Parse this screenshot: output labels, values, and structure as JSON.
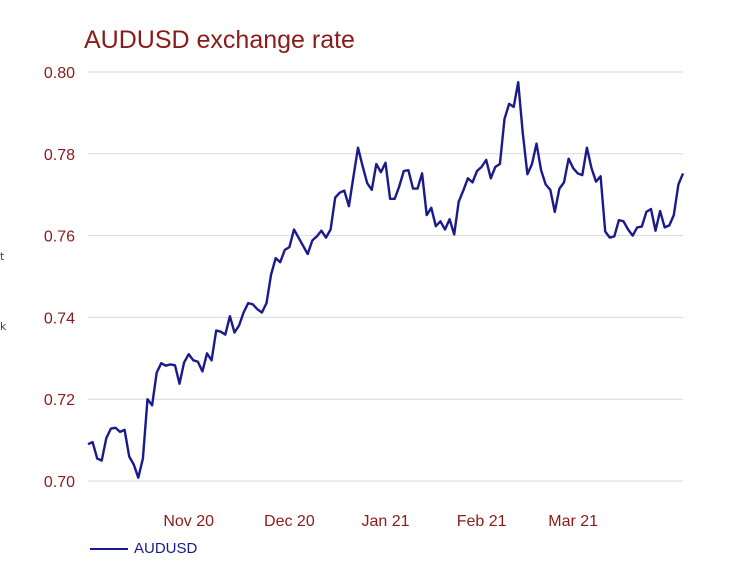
{
  "chart_data": {
    "type": "line",
    "title": "AUDUSD exchange rate",
    "xlabel": "",
    "ylabel": "",
    "ylim": [
      0.7,
      0.8
    ],
    "y_ticks": [
      "0.70",
      "0.72",
      "0.74",
      "0.76",
      "0.78",
      "0.80"
    ],
    "x_ticks": [
      {
        "label": "Nov 20",
        "index": 22
      },
      {
        "label": "Dec 20",
        "index": 44
      },
      {
        "label": "Jan 21",
        "index": 65
      },
      {
        "label": "Feb 21",
        "index": 86
      },
      {
        "label": "Mar 21",
        "index": 106
      }
    ],
    "grid": "horizontal",
    "legend": "bottom-left",
    "series": [
      {
        "name": "AUDUSD",
        "color": "#1a1a8c",
        "values": [
          0.709,
          0.7095,
          0.7055,
          0.705,
          0.7105,
          0.7128,
          0.713,
          0.712,
          0.7125,
          0.706,
          0.704,
          0.7008,
          0.7055,
          0.72,
          0.7185,
          0.7265,
          0.7288,
          0.7282,
          0.7285,
          0.7283,
          0.7238,
          0.729,
          0.731,
          0.7295,
          0.7292,
          0.7268,
          0.7312,
          0.7295,
          0.7368,
          0.7365,
          0.7358,
          0.7403,
          0.7363,
          0.738,
          0.7412,
          0.7435,
          0.7432,
          0.742,
          0.7412,
          0.7435,
          0.7505,
          0.7545,
          0.7535,
          0.7565,
          0.7572,
          0.7615,
          0.7595,
          0.7575,
          0.7555,
          0.7588,
          0.7598,
          0.7612,
          0.7595,
          0.7615,
          0.7693,
          0.7705,
          0.771,
          0.7672,
          0.7745,
          0.7815,
          0.777,
          0.7728,
          0.7712,
          0.7775,
          0.7755,
          0.7778,
          0.769,
          0.769,
          0.772,
          0.7758,
          0.776,
          0.7715,
          0.7715,
          0.7752,
          0.765,
          0.7668,
          0.7623,
          0.7635,
          0.7615,
          0.764,
          0.7603,
          0.7683,
          0.771,
          0.774,
          0.773,
          0.7758,
          0.7768,
          0.7785,
          0.774,
          0.7768,
          0.7775,
          0.7885,
          0.7922,
          0.7915,
          0.7975,
          0.785,
          0.775,
          0.7775,
          0.7825,
          0.776,
          0.7725,
          0.7712,
          0.7658,
          0.7715,
          0.773,
          0.7788,
          0.7765,
          0.7752,
          0.7748,
          0.7815,
          0.7765,
          0.7732,
          0.7745,
          0.761,
          0.7595,
          0.7598,
          0.7638,
          0.7635,
          0.7615,
          0.76,
          0.762,
          0.7622,
          0.7658,
          0.7665,
          0.7612,
          0.766,
          0.762,
          0.7625,
          0.765,
          0.7725,
          0.7752
        ]
      }
    ]
  },
  "page_edge_marks": [
    "t",
    "k"
  ]
}
